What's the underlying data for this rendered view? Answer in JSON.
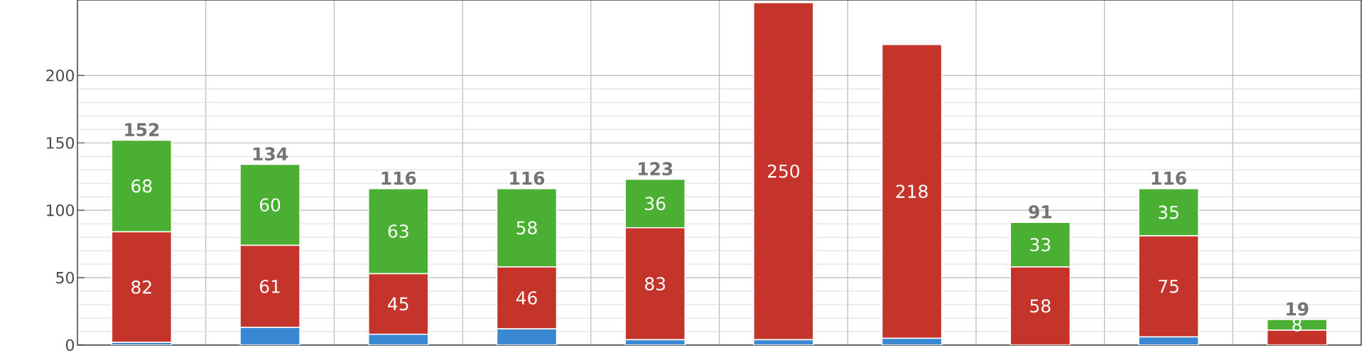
{
  "chart_data": {
    "type": "bar",
    "stacked": true,
    "categories": [
      null,
      null,
      null,
      null,
      null,
      null,
      null,
      null,
      null,
      null
    ],
    "series": [
      {
        "color": "#3a87d4",
        "values": [
          2,
          13,
          8,
          12,
          4,
          4,
          5,
          0,
          6,
          0
        ]
      },
      {
        "color": "#c4342a",
        "values": [
          82,
          61,
          45,
          46,
          83,
          250,
          218,
          58,
          75,
          11
        ],
        "value_labels": [
          "82",
          "61",
          "45",
          "46",
          "83",
          "250",
          "218",
          "58",
          "75",
          null
        ]
      },
      {
        "color": "#4aaf32",
        "values": [
          68,
          60,
          63,
          58,
          36,
          null,
          null,
          33,
          35,
          8
        ],
        "value_labels": [
          "68",
          "60",
          "63",
          "58",
          "36",
          null,
          null,
          "33",
          "35",
          "8"
        ]
      }
    ],
    "totals": [
      "152",
      "134",
      "116",
      "116",
      "123",
      null,
      null,
      "91",
      "116",
      "19"
    ],
    "ylim": [
      0,
      256
    ],
    "yticks": [
      0,
      50,
      100,
      150,
      200
    ],
    "grid": true
  }
}
